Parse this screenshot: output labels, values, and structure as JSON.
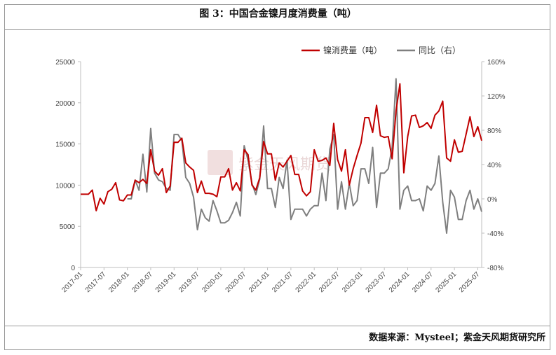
{
  "title": "图 3：中国合金镍月度消费量（吨）",
  "source": "数据来源：Mysteel；紫金天风期货研究所",
  "watermark": "紫金天风期货",
  "colors": {
    "series1": "#c00000",
    "series2": "#7f7f7f",
    "axis": "#bfbfbf",
    "grid": "#e0e0e0"
  },
  "chart_data": {
    "type": "line",
    "legend_position": "top-right",
    "grid": false,
    "x_ticks": [
      "2017-01",
      "2017-07",
      "2018-01",
      "2018-07",
      "2019-01",
      "2019-07",
      "2020-01",
      "2020-07",
      "2021-01",
      "2021-07",
      "2022-01",
      "2022-07",
      "2023-01",
      "2023-07",
      "2024-01",
      "2024-07",
      "2025-01",
      "2025-07"
    ],
    "y_left": {
      "lim": [
        0,
        25000
      ],
      "ticks": [
        "0",
        "5000",
        "10000",
        "15000",
        "20000",
        "25000"
      ]
    },
    "y_right": {
      "lim": [
        -80,
        160
      ],
      "ticks": [
        "-80%",
        "-40%",
        "0%",
        "40%",
        "80%",
        "120%",
        "160%"
      ]
    },
    "x": [
      "2017-01",
      "2017-02",
      "2017-03",
      "2017-04",
      "2017-05",
      "2017-06",
      "2017-07",
      "2017-08",
      "2017-09",
      "2017-10",
      "2017-11",
      "2017-12",
      "2018-01",
      "2018-02",
      "2018-03",
      "2018-04",
      "2018-05",
      "2018-06",
      "2018-07",
      "2018-08",
      "2018-09",
      "2018-10",
      "2018-11",
      "2018-12",
      "2019-01",
      "2019-02",
      "2019-03",
      "2019-04",
      "2019-05",
      "2019-06",
      "2019-07",
      "2019-08",
      "2019-09",
      "2019-10",
      "2019-11",
      "2019-12",
      "2020-01",
      "2020-02",
      "2020-03",
      "2020-04",
      "2020-05",
      "2020-06",
      "2020-07",
      "2020-08",
      "2020-09",
      "2020-10",
      "2020-11",
      "2020-12",
      "2021-01",
      "2021-02",
      "2021-03",
      "2021-04",
      "2021-05",
      "2021-06",
      "2021-07",
      "2021-08",
      "2021-09",
      "2021-10",
      "2021-11",
      "2021-12",
      "2022-01",
      "2022-02",
      "2022-03",
      "2022-04",
      "2022-05",
      "2022-06",
      "2022-07",
      "2022-08",
      "2022-09",
      "2022-10",
      "2022-11",
      "2022-12",
      "2023-01",
      "2023-02",
      "2023-03",
      "2023-04",
      "2023-05",
      "2023-06",
      "2023-07",
      "2023-08",
      "2023-09",
      "2023-10",
      "2023-11",
      "2023-12",
      "2024-01",
      "2024-02",
      "2024-03",
      "2024-04",
      "2024-05",
      "2024-06",
      "2024-07",
      "2024-08",
      "2024-09",
      "2024-10",
      "2024-11",
      "2024-12",
      "2025-01",
      "2025-02",
      "2025-03",
      "2025-04",
      "2025-05",
      "2025-06",
      "2025-07",
      "2025-08"
    ],
    "series": [
      {
        "name": "镍消费量（吨）",
        "axis": "left",
        "values": [
          8900,
          8900,
          8900,
          9400,
          6900,
          8400,
          7700,
          9200,
          9500,
          10300,
          8200,
          8100,
          8800,
          8800,
          10600,
          10300,
          10700,
          10200,
          14300,
          11700,
          11200,
          12000,
          9100,
          9900,
          15200,
          15200,
          15700,
          12700,
          12200,
          11800,
          9100,
          10500,
          9000,
          9000,
          8900,
          8600,
          11000,
          11000,
          12000,
          9400,
          10300,
          9300,
          14300,
          13700,
          10000,
          9400,
          10900,
          15300,
          13800,
          13800,
          10600,
          12700,
          12200,
          12900,
          13600,
          11300,
          11300,
          9300,
          8700,
          9200,
          14300,
          12900,
          13000,
          13300,
          12400,
          17500,
          13100,
          11700,
          14300,
          10000,
          12000,
          13600,
          15100,
          18200,
          18200,
          16400,
          19700,
          16000,
          15800,
          15900,
          13200,
          19000,
          22300,
          11500,
          15900,
          18400,
          18500,
          17000,
          17200,
          17600,
          16900,
          18500,
          19000,
          20200,
          13300,
          12900,
          15500,
          14000,
          14100,
          16200,
          18300,
          15900,
          17100,
          15400
        ]
      },
      {
        "name": "同比（右）",
        "axis": "right",
        "values": [
          null,
          null,
          null,
          null,
          null,
          null,
          null,
          null,
          null,
          null,
          null,
          null,
          0,
          0,
          22,
          10,
          52,
          8,
          82,
          30,
          22,
          20,
          12,
          10,
          75,
          75,
          68,
          25,
          18,
          2,
          -36,
          -12,
          -22,
          -26,
          -2,
          -14,
          -28,
          -28,
          -25,
          -16,
          -4,
          -20,
          62,
          45,
          18,
          5,
          23,
          85,
          12,
          12,
          -10,
          25,
          12,
          45,
          -24,
          -12,
          -12,
          -12,
          -20,
          -12,
          -8,
          -8,
          30,
          -2,
          58,
          75,
          -12,
          20,
          -12,
          18,
          -8,
          -2,
          35,
          35,
          18,
          60,
          -10,
          30,
          30,
          35,
          60,
          140,
          -12,
          10,
          15,
          -2,
          -2,
          0,
          -14,
          15,
          10,
          18,
          50,
          -4,
          -40,
          10,
          2,
          -24,
          -24,
          -2,
          10,
          -12,
          0,
          -15
        ]
      }
    ]
  }
}
